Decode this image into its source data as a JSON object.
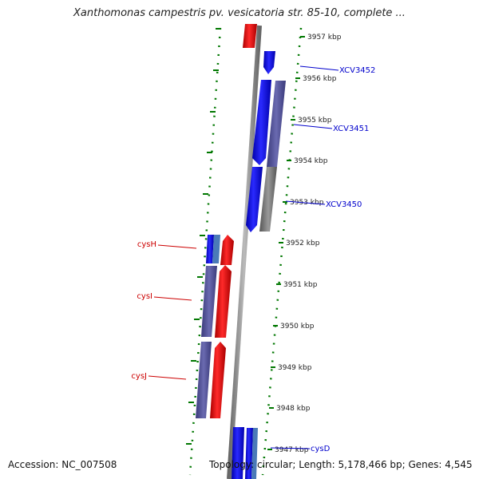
{
  "title": "Xanthomonas campestris pv. vesicatoria str. 85-10, complete ...",
  "footer": {
    "accession": "Accession: NC_007508",
    "summary": "Topology: circular; Length: 5,178,466 bp; Genes: 4,545"
  },
  "ticks": [
    {
      "label": "3957 kbp",
      "kbp": 3957
    },
    {
      "label": "3956 kbp",
      "kbp": 3956
    },
    {
      "label": "3955 kbp",
      "kbp": 3955
    },
    {
      "label": "3954 kbp",
      "kbp": 3954
    },
    {
      "label": "3953 kbp",
      "kbp": 3953
    },
    {
      "label": "3952 kbp",
      "kbp": 3952
    },
    {
      "label": "3951 kbp",
      "kbp": 3951
    },
    {
      "label": "3950 kbp",
      "kbp": 3950
    },
    {
      "label": "3949 kbp",
      "kbp": 3949
    },
    {
      "label": "3948 kbp",
      "kbp": 3948
    },
    {
      "label": "3947 kbp",
      "kbp": 3947
    }
  ],
  "gene_labels": [
    {
      "name": "XCV3452",
      "strand": "right",
      "color": "#0000cc"
    },
    {
      "name": "XCV3451",
      "strand": "right",
      "color": "#0000cc"
    },
    {
      "name": "XCV3450",
      "strand": "right",
      "color": "#0000cc"
    },
    {
      "name": "cysH",
      "strand": "left",
      "color": "#cc0000"
    },
    {
      "name": "cysI",
      "strand": "left",
      "color": "#cc0000"
    },
    {
      "name": "cysJ",
      "strand": "left",
      "color": "#cc0000"
    },
    {
      "name": "cysD",
      "strand": "right",
      "color": "#0000cc"
    }
  ],
  "colors": {
    "forward_feature": "#0000ff",
    "reverse_feature": "#ff0000",
    "cds_track": "#5a5aa0",
    "backbone": "#888888",
    "tick_marks": "#007700"
  }
}
